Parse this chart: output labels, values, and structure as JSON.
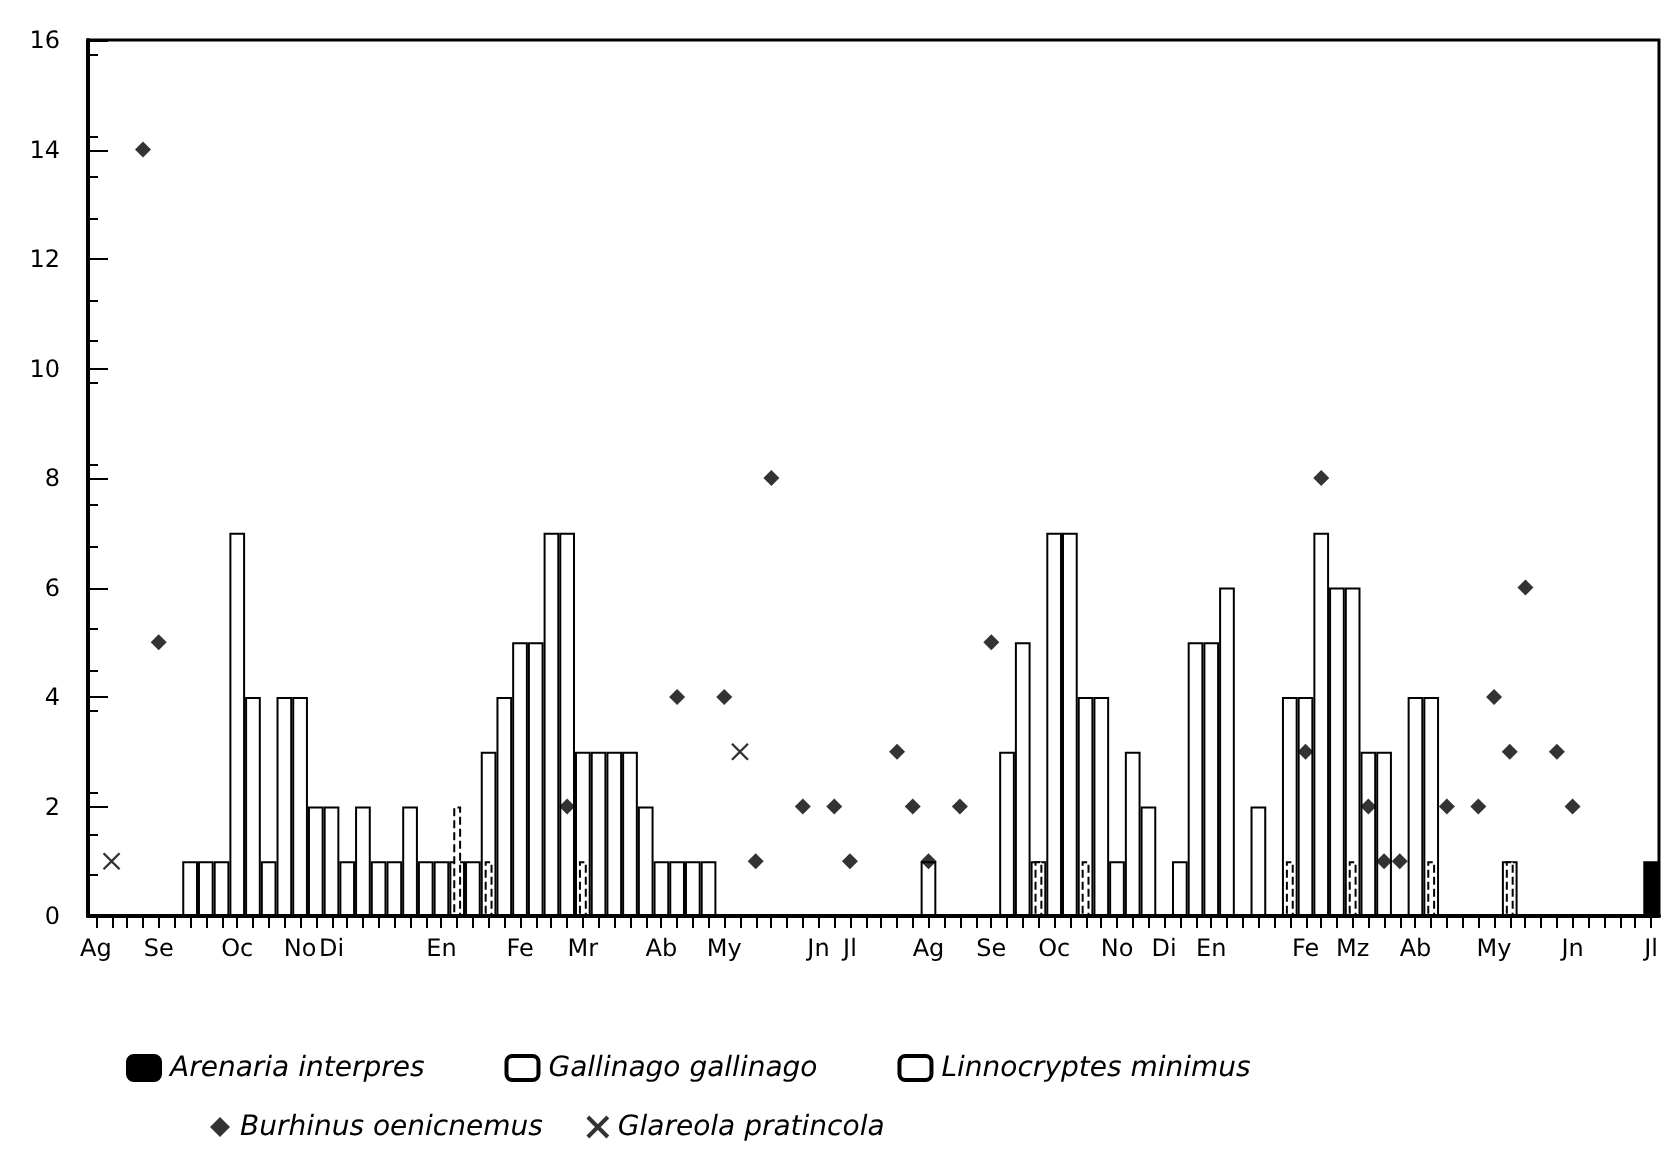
{
  "chart_data": {
    "type": "bar",
    "categories": [
      "Ag",
      null,
      null,
      null,
      "Se",
      null,
      null,
      null,
      null,
      "Oc",
      null,
      null,
      null,
      "No",
      null,
      "Di",
      null,
      null,
      null,
      null,
      null,
      null,
      "En",
      null,
      null,
      null,
      null,
      "Fe",
      null,
      null,
      null,
      "Mr",
      null,
      null,
      null,
      null,
      "Ab",
      null,
      null,
      null,
      "My",
      null,
      null,
      null,
      null,
      null,
      "Jn",
      null,
      "Jl",
      null,
      null,
      null,
      null,
      "Ag",
      null,
      null,
      null,
      "Se",
      null,
      null,
      null,
      "Oc",
      null,
      null,
      null,
      "No",
      null,
      null,
      "Di",
      null,
      null,
      "En",
      null,
      null,
      null,
      null,
      null,
      "Fe",
      null,
      null,
      "Mz",
      null,
      null,
      null,
      "Ab",
      null,
      null,
      null,
      null,
      "My",
      null,
      null,
      null,
      null,
      "Jn",
      null,
      null,
      null,
      null,
      "Jl"
    ],
    "series": [
      {
        "name": "Arenaria interpres",
        "color": "#000000",
        "values": [
          null,
          null,
          null,
          null,
          null,
          null,
          null,
          null,
          null,
          null,
          null,
          null,
          null,
          null,
          null,
          null,
          null,
          null,
          null,
          null,
          null,
          null,
          null,
          null,
          null,
          null,
          null,
          null,
          null,
          null,
          null,
          null,
          null,
          null,
          null,
          null,
          null,
          null,
          null,
          null,
          null,
          null,
          null,
          null,
          null,
          null,
          null,
          null,
          null,
          null,
          null,
          null,
          null,
          null,
          null,
          null,
          null,
          null,
          null,
          null,
          null,
          null,
          null,
          null,
          null,
          null,
          null,
          null,
          null,
          null,
          null,
          null,
          null,
          null,
          null,
          null,
          null,
          null,
          null,
          null,
          null,
          null,
          null,
          null,
          null,
          null,
          null,
          null,
          null,
          null,
          null,
          null,
          null,
          null,
          null,
          null,
          null,
          null,
          null,
          1
        ]
      },
      {
        "name": "Gallinago gallinago",
        "color": "#ffffff",
        "values": [
          null,
          null,
          null,
          null,
          null,
          null,
          1,
          1,
          1,
          7,
          4,
          1,
          4,
          4,
          2,
          2,
          1,
          2,
          1,
          1,
          2,
          1,
          1,
          1,
          1,
          3,
          4,
          5,
          5,
          7,
          7,
          3,
          3,
          3,
          3,
          2,
          1,
          1,
          1,
          1,
          null,
          null,
          null,
          null,
          null,
          null,
          null,
          null,
          null,
          null,
          null,
          null,
          null,
          1,
          null,
          null,
          null,
          null,
          3,
          5,
          1,
          7,
          7,
          4,
          4,
          1,
          3,
          2,
          null,
          1,
          5,
          5,
          6,
          null,
          2,
          null,
          4,
          4,
          7,
          6,
          6,
          3,
          3,
          null,
          4,
          4,
          null,
          null,
          null,
          null,
          1,
          null,
          null,
          null,
          null,
          null,
          null,
          null,
          null,
          null
        ]
      },
      {
        "name": "Linnocryptes minimus",
        "color": "#ffffff",
        "values": [
          null,
          null,
          null,
          null,
          null,
          null,
          null,
          null,
          null,
          null,
          null,
          null,
          null,
          null,
          null,
          null,
          null,
          null,
          null,
          null,
          null,
          null,
          null,
          2,
          null,
          1,
          null,
          null,
          null,
          null,
          null,
          1,
          null,
          null,
          null,
          null,
          null,
          null,
          null,
          null,
          null,
          null,
          null,
          null,
          null,
          null,
          null,
          null,
          null,
          null,
          null,
          null,
          null,
          null,
          null,
          null,
          null,
          null,
          null,
          null,
          1,
          null,
          null,
          1,
          null,
          null,
          null,
          null,
          null,
          null,
          null,
          null,
          null,
          null,
          null,
          null,
          1,
          null,
          null,
          null,
          1,
          null,
          null,
          null,
          null,
          1,
          null,
          null,
          null,
          null,
          1,
          null,
          null,
          null,
          null,
          null,
          null,
          null,
          null,
          null
        ]
      },
      {
        "name": "Burhinus oenicnemus",
        "type": "scatter",
        "marker": "diamond",
        "color": "#000000",
        "values": [
          null,
          null,
          null,
          14,
          5,
          null,
          null,
          null,
          null,
          null,
          null,
          null,
          null,
          null,
          null,
          null,
          null,
          null,
          null,
          null,
          null,
          null,
          null,
          null,
          null,
          null,
          null,
          null,
          null,
          null,
          2,
          null,
          null,
          null,
          null,
          null,
          null,
          4,
          null,
          null,
          4,
          null,
          1,
          8,
          null,
          2,
          null,
          2,
          1,
          null,
          null,
          3,
          2,
          1,
          null,
          2,
          null,
          5,
          null,
          null,
          null,
          null,
          null,
          null,
          null,
          null,
          null,
          null,
          null,
          null,
          null,
          null,
          null,
          null,
          null,
          null,
          null,
          3,
          8,
          null,
          null,
          2,
          1,
          1,
          null,
          null,
          2,
          null,
          2,
          4,
          3,
          6,
          null,
          3,
          2,
          null,
          null,
          null,
          null,
          null
        ]
      },
      {
        "name": "Glareola pratincola",
        "type": "scatter",
        "marker": "cross",
        "color": "#000000",
        "values": [
          null,
          1,
          null,
          null,
          null,
          null,
          null,
          null,
          null,
          null,
          null,
          null,
          null,
          null,
          null,
          null,
          null,
          null,
          null,
          null,
          null,
          null,
          null,
          null,
          null,
          null,
          null,
          null,
          null,
          null,
          null,
          null,
          null,
          null,
          null,
          null,
          null,
          null,
          null,
          null,
          null,
          3,
          null,
          null,
          null,
          null,
          null,
          null,
          null,
          null,
          null,
          null,
          null,
          null,
          null,
          null,
          null,
          null,
          null,
          null,
          null,
          null,
          null,
          null,
          null,
          null,
          null,
          null,
          null,
          null,
          null,
          null,
          null,
          null,
          null,
          null,
          null,
          null,
          null,
          null,
          null,
          null,
          null,
          null,
          null,
          null,
          null,
          null,
          null,
          null,
          null,
          null,
          null,
          null,
          null,
          null,
          null,
          null,
          null,
          null
        ]
      }
    ],
    "ylim": [
      0,
      16
    ],
    "yticks": [
      0,
      2,
      4,
      6,
      8,
      10,
      12,
      14,
      16
    ],
    "grid": false,
    "legend": "bottom"
  }
}
